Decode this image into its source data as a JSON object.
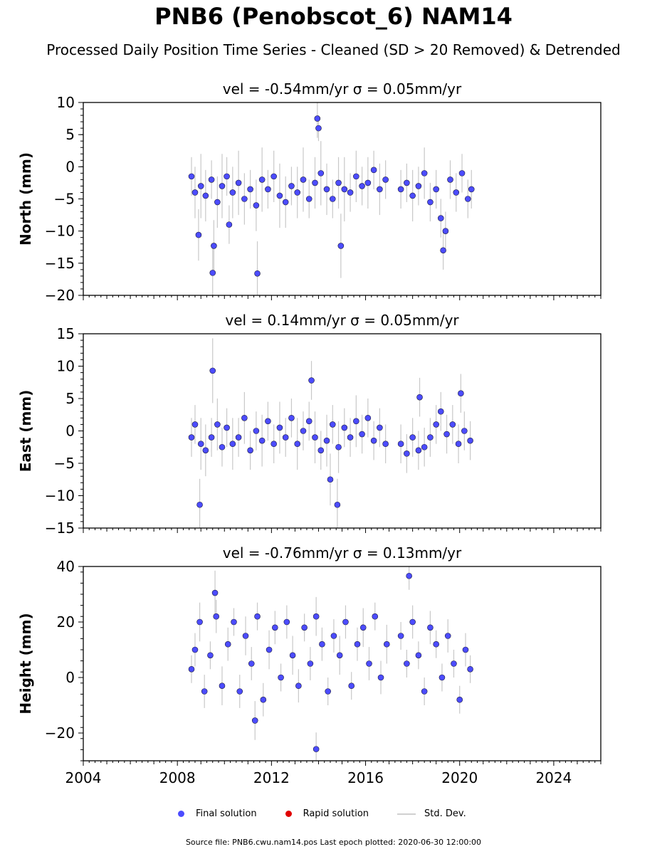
{
  "title": "PNB6 (Penobscot_6) NAM14",
  "subtitle": "Processed Daily Position Time Series - Cleaned (SD > 20 Removed) & Detrended",
  "legend": {
    "final": "Final solution",
    "rapid": "Rapid solution",
    "std": "Std. Dev."
  },
  "footer": "Source file: PNB6.cwu.nam14.pos  Last epoch plotted: 2020-06-30 12:00:00",
  "colors": {
    "final": "#4c4cff",
    "rapid": "#e00000",
    "std": "#c8c8c8",
    "edge": "#1a1a3a"
  },
  "chart_data": [
    {
      "type": "scatter",
      "panel": "north",
      "title": "vel = -0.54mm/yr   σ = 0.05mm/yr",
      "ylabel": "North (mm)",
      "xlim": [
        2004,
        2026
      ],
      "ylim": [
        -20,
        10
      ],
      "yticks": [
        -20,
        -15,
        -10,
        -5,
        0,
        5,
        10
      ],
      "xticks": [
        2004,
        2008,
        2012,
        2016,
        2020,
        2024
      ],
      "xticklabels": [],
      "yticklabels": [
        "−20",
        "−15",
        "−10",
        "−5",
        "0",
        "5",
        "10"
      ],
      "series": [
        {
          "name": "Final solution",
          "x": [
            2008.6,
            2008.75,
            2009.0,
            2009.2,
            2009.45,
            2009.7,
            2009.9,
            2010.1,
            2010.35,
            2010.6,
            2010.85,
            2011.1,
            2011.35,
            2011.6,
            2011.85,
            2012.1,
            2012.35,
            2012.6,
            2012.85,
            2013.1,
            2013.35,
            2013.6,
            2013.85,
            2014.0,
            2014.1,
            2014.35,
            2014.6,
            2014.85,
            2015.1,
            2015.35,
            2015.6,
            2015.85,
            2016.1,
            2016.35,
            2016.6,
            2016.85,
            2017.5,
            2017.75,
            2018.0,
            2018.25,
            2018.5,
            2018.75,
            2019.0,
            2019.2,
            2019.4,
            2019.6,
            2019.85,
            2020.1,
            2020.35,
            2020.5,
            2009.5,
            2009.55,
            2008.9,
            2011.4,
            2013.95,
            2014.95,
            2010.2,
            2019.3
          ],
          "y": [
            -1.5,
            -4.0,
            -3.0,
            -4.5,
            -2.0,
            -5.5,
            -3.0,
            -1.5,
            -4.0,
            -2.5,
            -5.0,
            -3.5,
            -6.0,
            -2.0,
            -3.5,
            -1.5,
            -4.5,
            -5.5,
            -3.0,
            -4.0,
            -2.0,
            -5.0,
            -2.5,
            6.0,
            -1.0,
            -3.5,
            -5.0,
            -2.5,
            -3.5,
            -4.0,
            -1.5,
            -3.0,
            -2.5,
            -0.5,
            -3.5,
            -2.0,
            -3.5,
            -2.5,
            -4.5,
            -3.0,
            -1.0,
            -5.5,
            -3.5,
            -8.0,
            -10.0,
            -2.0,
            -4.0,
            -1.0,
            -5.0,
            -3.5,
            -16.5,
            -12.3,
            -10.6,
            -16.6,
            7.5,
            -12.3,
            -9.0,
            -13.0
          ],
          "std": [
            3,
            4,
            5,
            4,
            3,
            4,
            5,
            3,
            4,
            5,
            4,
            3,
            4,
            5,
            3,
            4,
            5,
            4,
            3,
            4,
            5,
            3,
            4,
            2,
            5,
            4,
            3,
            4,
            5,
            3,
            4,
            3,
            4,
            3,
            4,
            3,
            3,
            3,
            4,
            3,
            4,
            3,
            3,
            3,
            3,
            3,
            3,
            3,
            3,
            3,
            4,
            4,
            4,
            5,
            3,
            5,
            3,
            3
          ]
        }
      ]
    },
    {
      "type": "scatter",
      "panel": "east",
      "title": "vel = 0.14mm/yr   σ = 0.05mm/yr",
      "ylabel": "East (mm)",
      "xlim": [
        2004,
        2026
      ],
      "ylim": [
        -15,
        15
      ],
      "yticks": [
        -15,
        -10,
        -5,
        0,
        5,
        10,
        15
      ],
      "xticks": [
        2004,
        2008,
        2012,
        2016,
        2020,
        2024
      ],
      "xticklabels": [],
      "yticklabels": [
        "−15",
        "−10",
        "−5",
        "0",
        "5",
        "10",
        "15"
      ],
      "series": [
        {
          "name": "Final solution",
          "x": [
            2008.6,
            2008.75,
            2009.0,
            2009.2,
            2009.45,
            2009.7,
            2009.9,
            2010.1,
            2010.35,
            2010.6,
            2010.85,
            2011.1,
            2011.35,
            2011.6,
            2011.85,
            2012.1,
            2012.35,
            2012.6,
            2012.85,
            2013.1,
            2013.35,
            2013.6,
            2013.85,
            2014.1,
            2014.35,
            2014.6,
            2014.85,
            2015.1,
            2015.35,
            2015.6,
            2015.85,
            2016.1,
            2016.35,
            2016.6,
            2016.85,
            2017.5,
            2017.75,
            2018.0,
            2018.25,
            2018.5,
            2018.75,
            2019.0,
            2019.2,
            2019.45,
            2019.7,
            2019.95,
            2020.2,
            2020.45,
            2009.5,
            2008.95,
            2013.7,
            2014.8,
            2014.5,
            2018.3,
            2020.05
          ],
          "y": [
            -1.0,
            1.0,
            -2.0,
            -3.0,
            -1.0,
            1.0,
            -2.5,
            0.5,
            -2.0,
            -1.0,
            2.0,
            -3.0,
            0.0,
            -1.5,
            1.5,
            -2.0,
            0.5,
            -1.0,
            2.0,
            -2.0,
            0.0,
            1.5,
            -1.0,
            -3.0,
            -1.5,
            1.0,
            -2.5,
            0.5,
            -1.0,
            1.5,
            -0.5,
            2.0,
            -1.5,
            0.5,
            -2.0,
            -2.0,
            -3.5,
            -1.0,
            -3.0,
            -2.5,
            -1.0,
            1.0,
            3.0,
            -0.5,
            1.0,
            -2.0,
            0.0,
            -1.5,
            9.3,
            -11.4,
            7.8,
            -11.4,
            -7.5,
            5.2,
            5.8
          ],
          "std": [
            3,
            3,
            4,
            4,
            3,
            4,
            3,
            3,
            4,
            3,
            4,
            3,
            3,
            4,
            3,
            3,
            4,
            3,
            3,
            4,
            3,
            3,
            4,
            3,
            4,
            3,
            4,
            3,
            3,
            4,
            3,
            3,
            3,
            3,
            3,
            3,
            3,
            3,
            3,
            3,
            3,
            3,
            3,
            3,
            3,
            3,
            3,
            3,
            5,
            4,
            3,
            4,
            4,
            3,
            3
          ]
        }
      ]
    },
    {
      "type": "scatter",
      "panel": "height",
      "title": "vel = -0.76mm/yr   σ = 0.13mm/yr",
      "ylabel": "Height (mm)",
      "xlim": [
        2004,
        2026
      ],
      "ylim": [
        -30,
        40
      ],
      "yticks": [
        -20,
        0,
        20,
        40
      ],
      "xticks": [
        2004,
        2008,
        2012,
        2016,
        2020,
        2024
      ],
      "xticklabels": [
        "2004",
        "2008",
        "2012",
        "2016",
        "2020",
        "2024"
      ],
      "yticklabels": [
        "−20",
        "0",
        "20",
        "40"
      ],
      "series": [
        {
          "name": "Final solution",
          "x": [
            2008.6,
            2008.75,
            2008.95,
            2009.15,
            2009.4,
            2009.65,
            2009.9,
            2010.15,
            2010.4,
            2010.65,
            2010.9,
            2011.15,
            2011.4,
            2011.65,
            2011.9,
            2012.15,
            2012.4,
            2012.65,
            2012.9,
            2013.15,
            2013.4,
            2013.65,
            2013.9,
            2014.15,
            2014.4,
            2014.65,
            2014.9,
            2015.15,
            2015.4,
            2015.65,
            2015.9,
            2016.15,
            2016.4,
            2016.65,
            2016.9,
            2017.5,
            2017.75,
            2018.0,
            2018.25,
            2018.5,
            2018.75,
            2019.0,
            2019.25,
            2019.5,
            2019.75,
            2020.0,
            2020.25,
            2020.45,
            2009.6,
            2013.9,
            2017.85,
            2011.3
          ],
          "y": [
            3.0,
            10.0,
            20.0,
            -5.0,
            8.0,
            22.0,
            -3.0,
            12.0,
            20.0,
            -5.0,
            15.0,
            5.0,
            22.0,
            -8.0,
            10.0,
            18.0,
            0.0,
            20.0,
            8.0,
            -3.0,
            18.0,
            5.0,
            22.0,
            12.0,
            -5.0,
            15.0,
            8.0,
            20.0,
            -3.0,
            12.0,
            18.0,
            5.0,
            22.0,
            0.0,
            12.0,
            15.0,
            5.0,
            20.0,
            8.0,
            -5.0,
            18.0,
            12.0,
            0.0,
            15.0,
            5.0,
            -8.0,
            10.0,
            3.0,
            30.5,
            -25.8,
            36.6,
            -15.5
          ],
          "std": [
            5,
            6,
            7,
            6,
            5,
            6,
            7,
            6,
            5,
            6,
            7,
            6,
            5,
            6,
            7,
            6,
            5,
            6,
            7,
            6,
            5,
            6,
            7,
            6,
            5,
            6,
            7,
            6,
            5,
            6,
            7,
            6,
            5,
            6,
            7,
            5,
            5,
            6,
            5,
            5,
            6,
            5,
            5,
            6,
            5,
            5,
            6,
            5,
            8,
            6,
            5,
            7
          ]
        }
      ]
    }
  ]
}
